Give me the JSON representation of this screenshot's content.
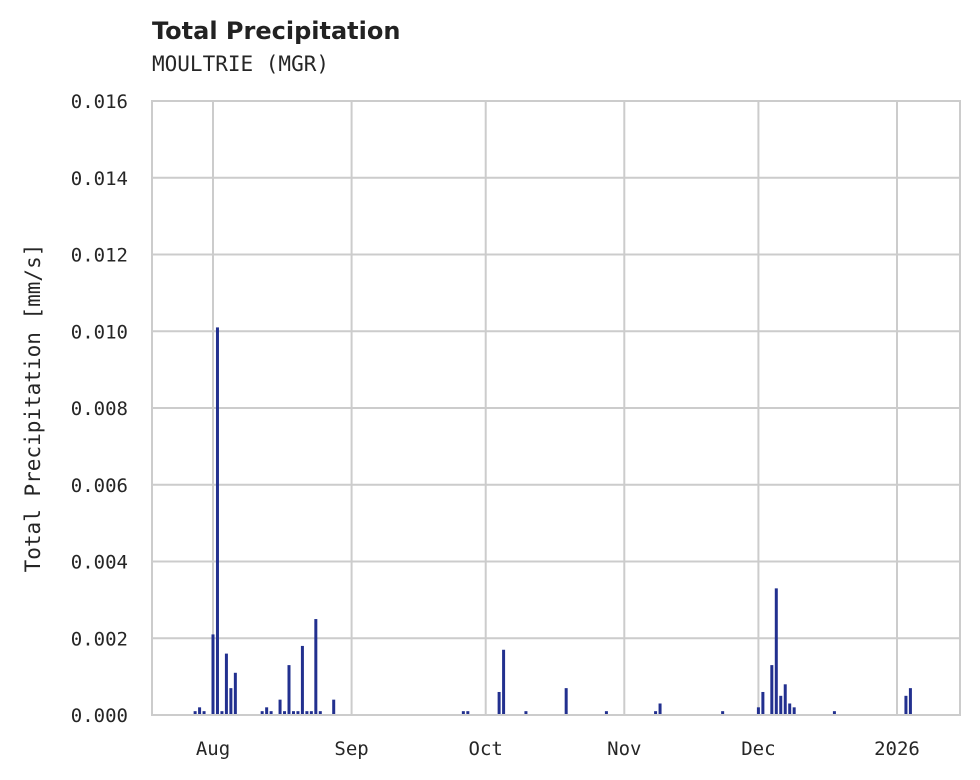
{
  "header": {
    "title": "Total Precipitation",
    "subtitle": "MOULTRIE (MGR)"
  },
  "chart_data": {
    "type": "bar",
    "title": "Total Precipitation",
    "subtitle": "MOULTRIE (MGR)",
    "xlabel": "",
    "ylabel": "Total Precipitation [mm/s]",
    "ylim": [
      0,
      0.016
    ],
    "yticks": [
      "0.000",
      "0.002",
      "0.004",
      "0.006",
      "0.008",
      "0.010",
      "0.012",
      "0.014",
      "0.016"
    ],
    "xticks": [
      "Aug",
      "Sep",
      "Oct",
      "Nov",
      "Dec",
      "2026"
    ],
    "grid": true,
    "legend": null,
    "bar_color": "#22308f",
    "series": [
      {
        "name": "Total Precipitation",
        "x": [
          "2025-07-28",
          "2025-07-29",
          "2025-07-30",
          "2025-08-01",
          "2025-08-02",
          "2025-08-03",
          "2025-08-04",
          "2025-08-05",
          "2025-08-06",
          "2025-08-12",
          "2025-08-13",
          "2025-08-14",
          "2025-08-16",
          "2025-08-17",
          "2025-08-18",
          "2025-08-19",
          "2025-08-20",
          "2025-08-21",
          "2025-08-22",
          "2025-08-23",
          "2025-08-24",
          "2025-08-25",
          "2025-08-28",
          "2025-09-26",
          "2025-09-27",
          "2025-10-04",
          "2025-10-05",
          "2025-10-10",
          "2025-10-19",
          "2025-10-28",
          "2025-11-08",
          "2025-11-09",
          "2025-11-23",
          "2025-12-01",
          "2025-12-02",
          "2025-12-04",
          "2025-12-05",
          "2025-12-06",
          "2025-12-07",
          "2025-12-08",
          "2025-12-09",
          "2025-12-18",
          "2026-01-03",
          "2026-01-04"
        ],
        "values": [
          0.0001,
          0.0002,
          0.0001,
          0.0021,
          0.0101,
          0.0001,
          0.0016,
          0.0007,
          0.0011,
          0.0001,
          0.0002,
          0.0001,
          0.0004,
          0.0001,
          0.0013,
          0.0001,
          0.0001,
          0.0018,
          0.0001,
          0.0001,
          0.0025,
          0.0001,
          0.0004,
          0.0001,
          0.0001,
          0.0006,
          0.0017,
          0.0001,
          0.0007,
          0.0001,
          0.0001,
          0.0003,
          0.0001,
          0.0002,
          0.0006,
          0.0013,
          0.0033,
          0.0005,
          0.0008,
          0.0003,
          0.0002,
          0.0001,
          0.0005,
          0.0007
        ]
      }
    ]
  }
}
